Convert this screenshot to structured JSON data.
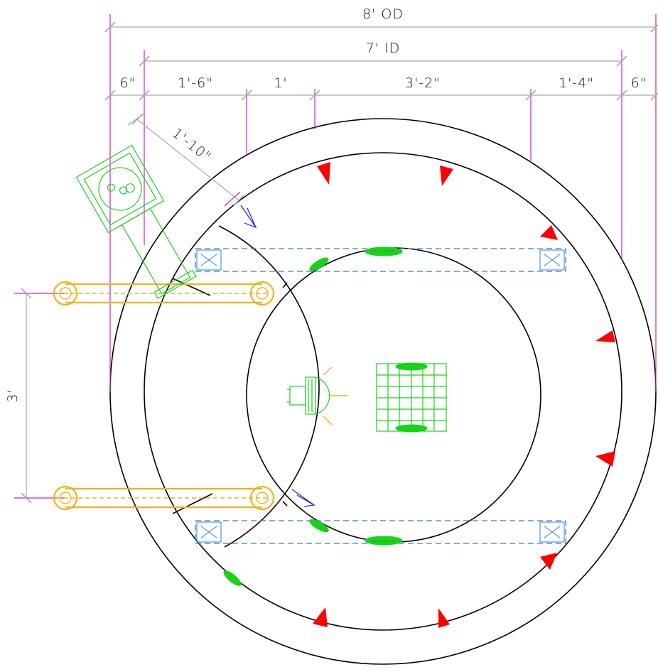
{
  "dimensions": {
    "outer_diameter": "8' OD",
    "inner_diameter": "7' ID",
    "segment_1": "6\"",
    "segment_2": "1'-6\"",
    "segment_3": "1'",
    "segment_4": "3'-2\"",
    "segment_5": "1'-4\"",
    "segment_6": "6\"",
    "diagonal": "1'-10\"",
    "vertical": "3'"
  },
  "colors": {
    "walls": "#000000",
    "fixtures": "#19d219",
    "supports": "#2a7fe0",
    "rails": "#f2b21b",
    "markers": "#ff0000",
    "extension_lines": "#cc22cc",
    "dimension_lines": "#a9a9a9"
  }
}
